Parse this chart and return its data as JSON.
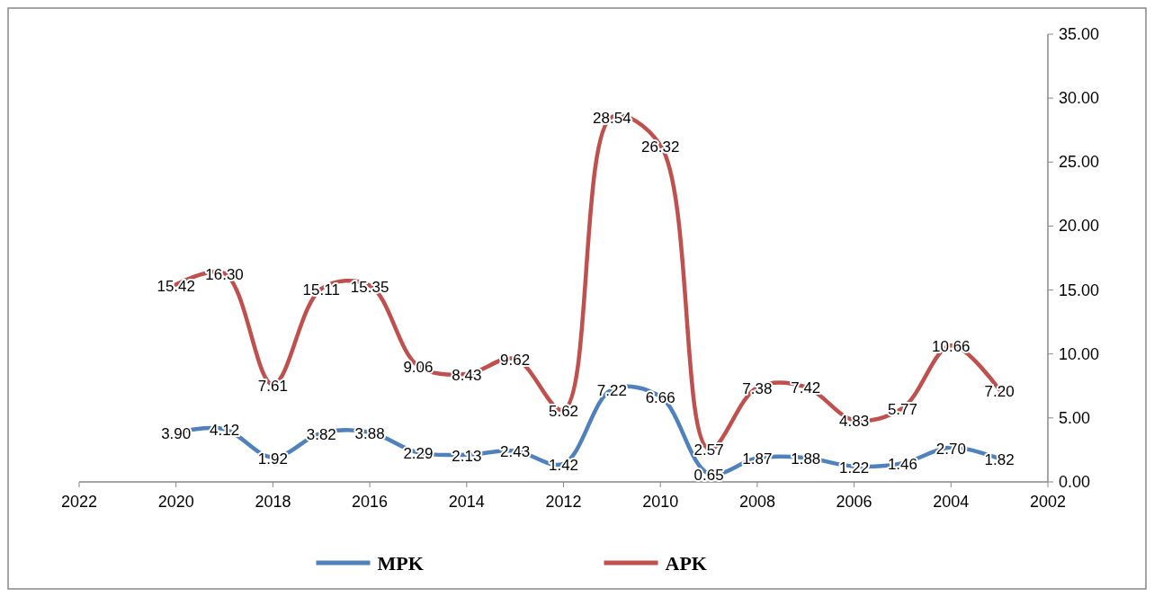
{
  "chart_data": {
    "type": "line",
    "x": [
      2020,
      2019,
      2018,
      2017,
      2016,
      2015,
      2014,
      2013,
      2012,
      2011,
      2010,
      2009,
      2008,
      2007,
      2006,
      2005,
      2004,
      2003
    ],
    "xlim": [
      2022,
      2002
    ],
    "xticks": [
      2022,
      2020,
      2018,
      2016,
      2014,
      2012,
      2010,
      2008,
      2006,
      2004,
      2002
    ],
    "ylim": [
      0,
      35
    ],
    "yticks": [
      {
        "value": 0,
        "label": "0.00"
      },
      {
        "value": 5,
        "label": "5.00"
      },
      {
        "value": 10,
        "label": "10.00"
      },
      {
        "value": 15,
        "label": "15.00"
      },
      {
        "value": 20,
        "label": "20.00"
      },
      {
        "value": 25,
        "label": "25.00"
      },
      {
        "value": 30,
        "label": "30.00"
      },
      {
        "value": 35,
        "label": "35.00"
      }
    ],
    "grid": false,
    "legend": "bottom",
    "marker": "none",
    "line_style": "solid",
    "series": [
      {
        "name": "MPK",
        "color": "#4f81bd",
        "values": [
          3.9,
          4.12,
          1.92,
          3.82,
          3.88,
          2.29,
          2.13,
          2.43,
          1.42,
          7.22,
          6.66,
          0.65,
          1.87,
          1.88,
          1.22,
          1.46,
          2.7,
          1.82
        ],
        "value_labels": [
          "3.90",
          "4.12",
          "1.92",
          "3.82",
          "3.88",
          "2.29",
          "2.13",
          "2.43",
          "1.42",
          "7.22",
          "6.66",
          "0.65",
          "1.87",
          "1.88",
          "1.22",
          "1.46",
          "2.70",
          "1.82"
        ]
      },
      {
        "name": "APK",
        "color": "#c0504d",
        "values": [
          15.42,
          16.3,
          7.61,
          15.11,
          15.35,
          9.06,
          8.43,
          9.62,
          5.62,
          28.54,
          26.32,
          2.57,
          7.38,
          7.42,
          4.83,
          5.77,
          10.66,
          7.2
        ],
        "value_labels": [
          "15.42",
          "16.30",
          "7.61",
          "15.11",
          "15.35",
          "9.06",
          "8.43",
          "9.62",
          "5.62",
          "28.54",
          "26.32",
          "2.57",
          "7.38",
          "7.42",
          "4.83",
          "5.77",
          "10.66",
          "7.20"
        ]
      }
    ]
  }
}
